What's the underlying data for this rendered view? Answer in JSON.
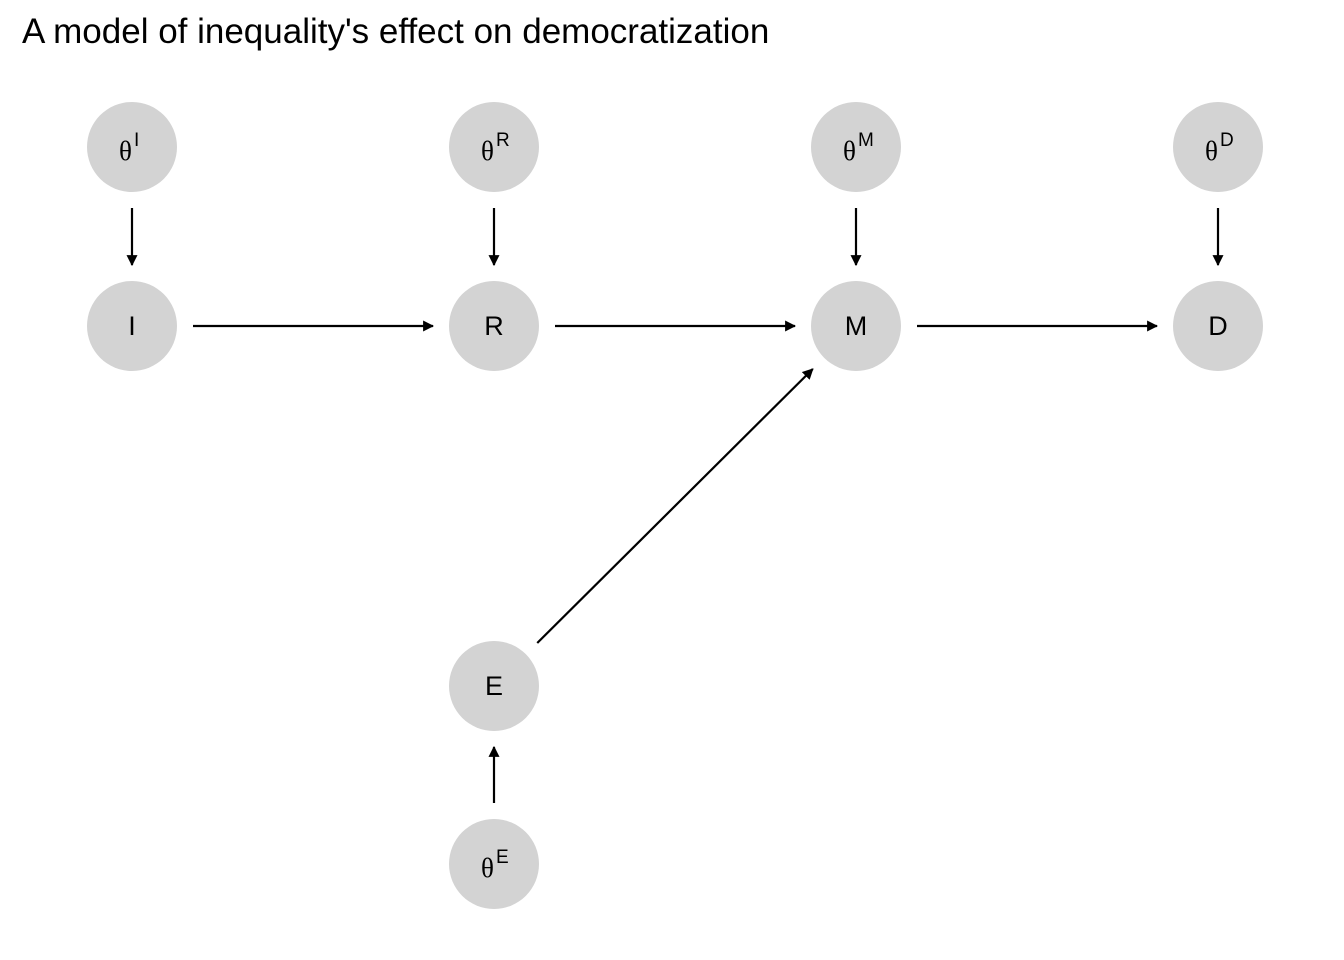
{
  "title": "A model of inequality's effect on democratization",
  "colors": {
    "node_fill": "#d3d3d3",
    "edge": "#000000",
    "text": "#000000",
    "background": "#ffffff"
  },
  "nodes": [
    {
      "id": "theta_I",
      "base": "θ",
      "sup": "I"
    },
    {
      "id": "theta_R",
      "base": "θ",
      "sup": "R"
    },
    {
      "id": "theta_M",
      "base": "θ",
      "sup": "M"
    },
    {
      "id": "theta_D",
      "base": "θ",
      "sup": "D"
    },
    {
      "id": "I",
      "base": "I",
      "sup": ""
    },
    {
      "id": "R",
      "base": "R",
      "sup": ""
    },
    {
      "id": "M",
      "base": "M",
      "sup": ""
    },
    {
      "id": "D",
      "base": "D",
      "sup": ""
    },
    {
      "id": "E",
      "base": "E",
      "sup": ""
    },
    {
      "id": "theta_E",
      "base": "θ",
      "sup": "E"
    }
  ],
  "edges": [
    {
      "from": "theta_I",
      "to": "I"
    },
    {
      "from": "theta_R",
      "to": "R"
    },
    {
      "from": "theta_M",
      "to": "M"
    },
    {
      "from": "theta_D",
      "to": "D"
    },
    {
      "from": "I",
      "to": "R"
    },
    {
      "from": "R",
      "to": "M"
    },
    {
      "from": "M",
      "to": "D"
    },
    {
      "from": "E",
      "to": "M"
    },
    {
      "from": "theta_E",
      "to": "E"
    }
  ]
}
